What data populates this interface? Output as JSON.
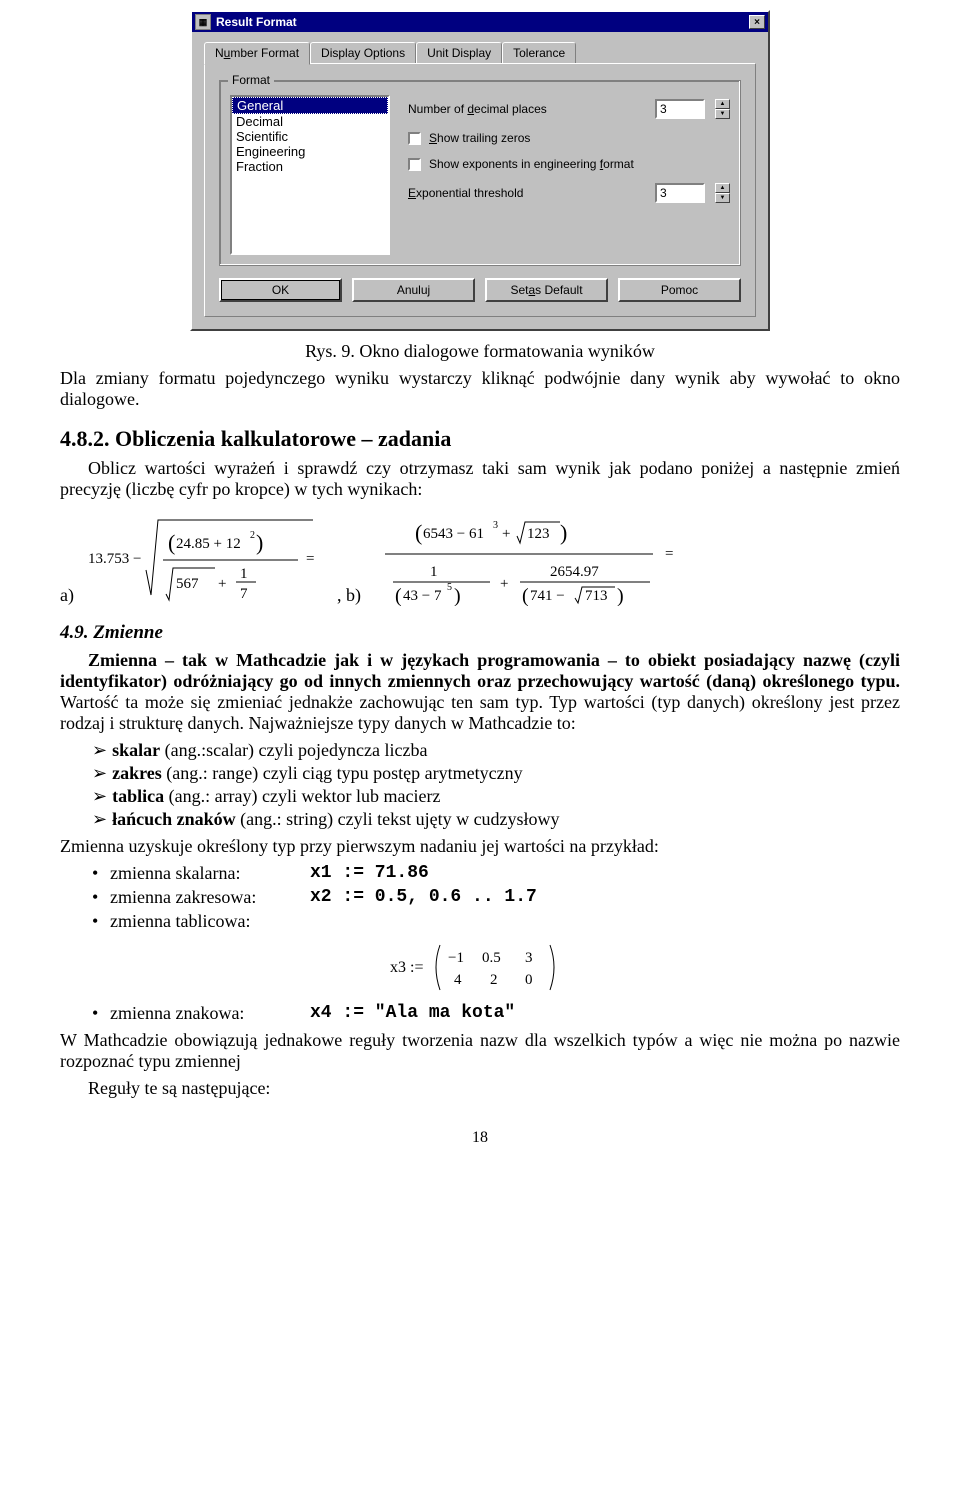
{
  "dialog": {
    "title": "Result Format",
    "close_glyph": "×",
    "tabs": [
      "Number Format",
      "Display Options",
      "Unit Display",
      "Tolerance"
    ],
    "tab_html": {
      "t0": "N<u>u</u>mber Format",
      "t1": "Display Options",
      "t2": "Unit Display",
      "t3": "Tolerance"
    },
    "active_tab": 0,
    "group_legend": "Format",
    "format_list": [
      "General",
      "Decimal",
      "Scientific",
      "Engineering",
      "Fraction"
    ],
    "selected_format_index": 0,
    "labels": {
      "decimal_places": "Number of <u>d</u>ecimal places",
      "trailing": "<u>S</u>how trailing zeros",
      "exponents": "Show exponents in engineering <u>f</u>ormat",
      "threshold": "<u>E</u>xponential threshold"
    },
    "values": {
      "decimal_places": "3",
      "threshold": "3",
      "trailing_checked": false,
      "exponents_checked": false
    },
    "buttons": {
      "ok": "OK",
      "cancel": "Anuluj",
      "default": "Set as Default",
      "default_html": "Set <u>a</u>s Default",
      "help": "Pomoc"
    },
    "colors": {
      "titlebar_bg": "#000080",
      "face": "#c0c0c0",
      "highlight": "#000080"
    }
  },
  "doc": {
    "caption": "Rys. 9. Okno dialogowe formatowania wyników",
    "para_intro": "Dla zmiany formatu pojedynczego wyniku wystarczy kliknąć podwójnie dany wynik aby wywołać to okno dialogowe.",
    "h3_calc": "4.8.2. Obliczenia kalkulatorowe – zadania",
    "para_calc": "Oblicz wartości wyrażeń i sprawdź czy otrzymasz taki sam wynik jak podano poniżej a następnie zmień precyzję (liczbę cyfr po kropce) w tych wynikach:",
    "h4_zmienne": "4.9.  Zmienne",
    "para_zmienna": "Zmienna – tak w Mathcadzie jak i w językach programowania – to obiekt posiadający nazwę (czyli identyfikator) odróżniający go od innych zmiennych oraz przechowujący wartość (daną) określonego typu.",
    "para_zmienna2": " Wartość ta może się zmieniać jednakże zachowując ten sam typ. Typ wartości (typ danych) określony jest przez rodzaj i strukturę danych. Najważniejsze typy danych w Mathcadzie to:",
    "types": [
      {
        "b": "skalar",
        "rest": " (ang.:scalar) czyli pojedyncza liczba"
      },
      {
        "b": "zakres",
        "rest": " (ang.: range) czyli ciąg typu postęp arytmetyczny"
      },
      {
        "b": "tablica",
        "rest": " (ang.: array) czyli wektor lub macierz"
      },
      {
        "b": "łańcuch znaków",
        "rest": " (ang.: string) czyli tekst ujęty w cudzysłowy"
      }
    ],
    "para_assign": "Zmienna uzyskuje określony typ przy pierwszym nadaniu jej wartości na przykład:",
    "assignments": [
      {
        "label": "zmienna skalarna:",
        "code": "x1 := 71.86"
      },
      {
        "label": "zmienna zakresowa:",
        "code": "x2 := 0.5, 0.6 .. 1.7"
      },
      {
        "label": "zmienna tablicowa:",
        "code": ""
      },
      {
        "label": "zmienna znakowa:",
        "code": "x4 := \"Ala ma kota\""
      }
    ],
    "matrix": {
      "var": "x3",
      "rows": [
        [
          "-1",
          "0.5",
          "3"
        ],
        [
          "4",
          "2",
          "0"
        ]
      ]
    },
    "para_rules": "W Mathcadzie obowiązują jednakowe reguły tworzenia nazw dla wszelkich typów a więc nie można po nazwie rozpoznać typu zmiennej",
    "para_rules2": "Reguły te są następujące:",
    "pagenum": "18",
    "formula_a_label": "a)",
    "formula_a_sep": ",  b)",
    "formula_a": {
      "top_left": "13.753",
      "num_a": "24.85",
      "num_b": "12",
      "num_b_sup": "2",
      "den_a": "567",
      "den_b": "1",
      "den_c": "7"
    },
    "formula_b": {
      "num_a": "6543",
      "num_b": "61",
      "num_b_sup": "3",
      "num_c": "123",
      "d1_a": "1",
      "d1_b": "43",
      "d1_c": "7",
      "d1_c_sup": "5",
      "d2_a": "2654.97",
      "d2_b": "741",
      "d2_c": "713"
    }
  }
}
